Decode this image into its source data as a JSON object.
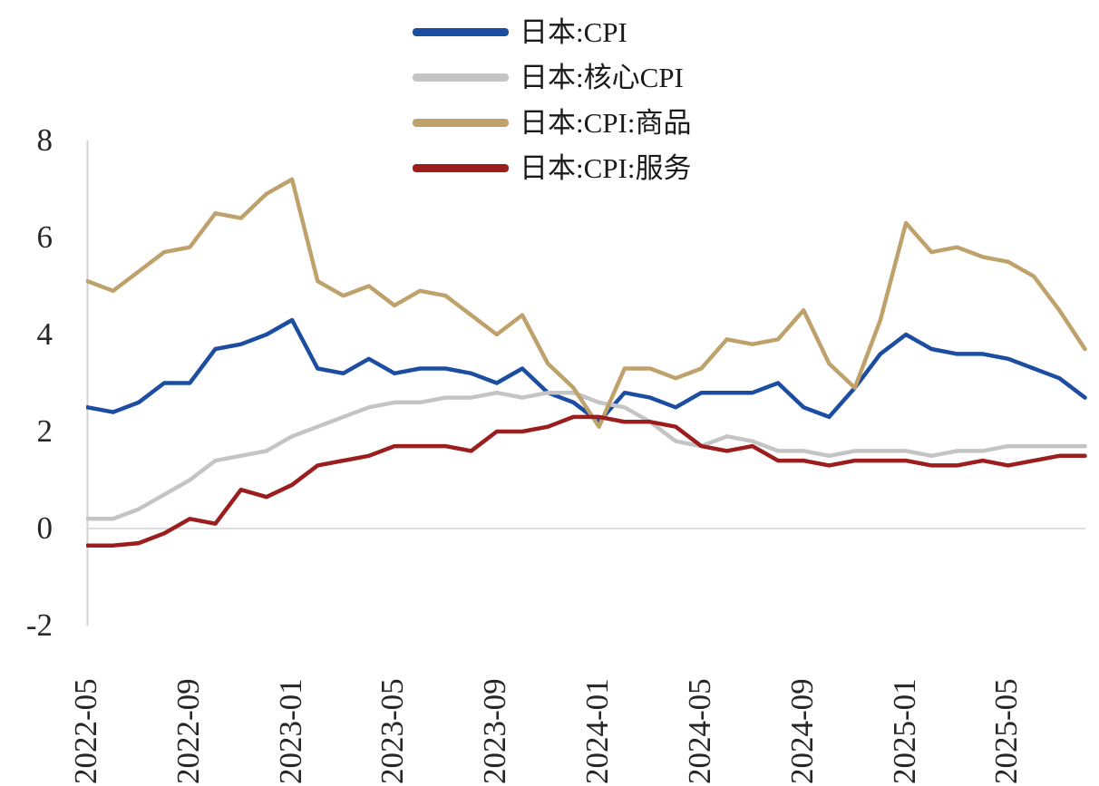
{
  "colors": {
    "axis": "#d2d2d2",
    "text": "#262626",
    "background": "#ffffff"
  },
  "chart_data": {
    "type": "line",
    "title": "",
    "xlabel": "",
    "ylabel": "",
    "ylim": [
      -2,
      8
    ],
    "yticks": [
      "8",
      "6",
      "4",
      "2",
      "0",
      "-2"
    ],
    "xticks": [
      "2022-05",
      "2022-09",
      "2023-01",
      "2023-05",
      "2023-09",
      "2024-01",
      "2024-05",
      "2024-09",
      "2025-01",
      "2025-05"
    ],
    "xtick_every": 4,
    "grid": "zero-baseline-only",
    "legend_position": "top-center",
    "categories": [
      "2022-05",
      "2022-06",
      "2022-07",
      "2022-08",
      "2022-09",
      "2022-10",
      "2022-11",
      "2022-12",
      "2023-01",
      "2023-02",
      "2023-03",
      "2023-04",
      "2023-05",
      "2023-06",
      "2023-07",
      "2023-08",
      "2023-09",
      "2023-10",
      "2023-11",
      "2023-12",
      "2024-01",
      "2024-02",
      "2024-03",
      "2024-04",
      "2024-05",
      "2024-06",
      "2024-07",
      "2024-08",
      "2024-09",
      "2024-10",
      "2024-11",
      "2024-12",
      "2025-01",
      "2025-02",
      "2025-03",
      "2025-04",
      "2025-05",
      "2025-06",
      "2025-07",
      "2025-08"
    ],
    "series": [
      {
        "name": "日本:CPI",
        "color": "#1c4da0",
        "values": [
          2.5,
          2.4,
          2.6,
          3.0,
          3.0,
          3.7,
          3.8,
          4.0,
          4.3,
          3.3,
          3.2,
          3.5,
          3.2,
          3.3,
          3.3,
          3.2,
          3.0,
          3.3,
          2.8,
          2.6,
          2.2,
          2.8,
          2.7,
          2.5,
          2.8,
          2.8,
          2.8,
          3.0,
          2.5,
          2.3,
          2.9,
          3.6,
          4.0,
          3.7,
          3.6,
          3.6,
          3.5,
          3.3,
          3.1,
          2.7
        ]
      },
      {
        "name": "日本:核心CPI",
        "color": "#c4c4c4",
        "values": [
          0.2,
          0.2,
          0.4,
          0.7,
          1.0,
          1.4,
          1.5,
          1.6,
          1.9,
          2.1,
          2.3,
          2.5,
          2.6,
          2.6,
          2.7,
          2.7,
          2.8,
          2.7,
          2.8,
          2.8,
          2.6,
          2.5,
          2.2,
          1.8,
          1.7,
          1.9,
          1.8,
          1.6,
          1.6,
          1.5,
          1.6,
          1.6,
          1.6,
          1.5,
          1.6,
          1.6,
          1.7,
          1.7,
          1.7,
          1.7
        ]
      },
      {
        "name": "日本:CPI:商品",
        "color": "#bfa26b",
        "values": [
          5.1,
          4.9,
          5.3,
          5.7,
          5.8,
          6.5,
          6.4,
          6.9,
          7.2,
          5.1,
          4.8,
          5.0,
          4.6,
          4.9,
          4.8,
          4.4,
          4.0,
          4.4,
          3.4,
          2.9,
          2.1,
          3.3,
          3.3,
          3.1,
          3.3,
          3.9,
          3.8,
          3.9,
          4.5,
          3.4,
          2.9,
          4.3,
          6.3,
          5.7,
          5.8,
          5.6,
          5.5,
          5.2,
          4.5,
          3.7
        ]
      },
      {
        "name": "日本:CPI:服务",
        "color": "#9c1d1d",
        "values": [
          -0.35,
          -0.35,
          -0.3,
          -0.1,
          0.2,
          0.1,
          0.8,
          0.65,
          0.9,
          1.3,
          1.4,
          1.5,
          1.7,
          1.7,
          1.7,
          1.6,
          2.0,
          2.0,
          2.1,
          2.3,
          2.3,
          2.2,
          2.2,
          2.1,
          1.7,
          1.6,
          1.7,
          1.4,
          1.4,
          1.3,
          1.4,
          1.4,
          1.4,
          1.3,
          1.3,
          1.4,
          1.3,
          1.4,
          1.5,
          1.5
        ]
      }
    ]
  }
}
